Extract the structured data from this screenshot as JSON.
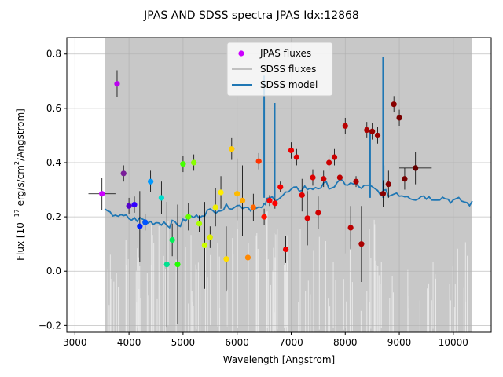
{
  "chart_data": {
    "type": "scatter",
    "title": "JPAS AND SDSS spectra JPAS Idx:12868",
    "xlabel": "Wavelength [Angstrom]",
    "ylabel_prefix": "Flux [10",
    "ylabel_exp": "−17",
    "ylabel_mid": " erg/s/cm",
    "ylabel_sq": "2",
    "ylabel_suffix": "/Angstrom]",
    "xlim": [
      2850,
      10700
    ],
    "ylim": [
      -0.225,
      0.86
    ],
    "xticks": [
      3000,
      4000,
      5000,
      6000,
      7000,
      8000,
      9000,
      10000
    ],
    "yticks": [
      -0.2,
      0.0,
      0.2,
      0.4,
      0.6,
      0.8
    ],
    "grid": true,
    "legend": {
      "placement": "top-center",
      "entries": [
        "JPAS fluxes",
        "SDSS fluxes",
        "SDSS model"
      ]
    },
    "colors": {
      "sdss_fluxes": "#c8c8c8",
      "sdss_model": "#1f77b4",
      "jpas_legend_marker": "#cc00ff"
    },
    "sdss_fluxes_range": [
      3550,
      10350
    ],
    "sdss_model": {
      "name": "SDSS model",
      "x": [
        3550,
        3650,
        3750,
        3850,
        3950,
        4050,
        4150,
        4250,
        4350,
        4450,
        4550,
        4650,
        4750,
        4850,
        4950,
        5050,
        5150,
        5250,
        5350,
        5450,
        5550,
        5650,
        5750,
        5850,
        5950,
        6050,
        6150,
        6250,
        6350,
        6450,
        6500,
        6550,
        6650,
        6750,
        6850,
        6950,
        7050,
        7150,
        7250,
        7350,
        7450,
        7550,
        7650,
        7750,
        7850,
        7950,
        8050,
        8150,
        8250,
        8350,
        8450,
        8550,
        8650,
        8750,
        8850,
        8950,
        9050,
        9150,
        9250,
        9350,
        9450,
        9550,
        9650,
        9750,
        9850,
        9950,
        10050,
        10150,
        10250,
        10350
      ],
      "y": [
        0.22,
        0.21,
        0.21,
        0.2,
        0.2,
        0.19,
        0.19,
        0.19,
        0.18,
        0.18,
        0.18,
        0.18,
        0.17,
        0.18,
        0.17,
        0.19,
        0.2,
        0.2,
        0.21,
        0.22,
        0.22,
        0.23,
        0.23,
        0.24,
        0.24,
        0.24,
        0.24,
        0.23,
        0.24,
        0.23,
        0.24,
        0.26,
        0.27,
        0.27,
        0.28,
        0.29,
        0.3,
        0.3,
        0.31,
        0.3,
        0.31,
        0.31,
        0.32,
        0.31,
        0.32,
        0.33,
        0.32,
        0.32,
        0.31,
        0.31,
        0.31,
        0.3,
        0.29,
        0.29,
        0.28,
        0.29,
        0.28,
        0.28,
        0.27,
        0.27,
        0.28,
        0.27,
        0.27,
        0.27,
        0.27,
        0.26,
        0.26,
        0.26,
        0.25,
        0.25
      ]
    },
    "sdss_model_spikes": [
      {
        "x": 6500,
        "y": 0.72
      },
      {
        "x": 6695,
        "y": 0.62
      },
      {
        "x": 8460,
        "y": 0.52
      },
      {
        "x": 8710,
        "y": 0.39
      },
      {
        "x": 8700,
        "y": 0.79
      }
    ],
    "jpas_fluxes": [
      {
        "x": 3500,
        "y": 0.285,
        "err": 0.06,
        "xerr": 250,
        "color": "#cc00ff"
      },
      {
        "x": 3780,
        "y": 0.69,
        "err": 0.05,
        "xerr": 50,
        "color": "#bb00f0"
      },
      {
        "x": 3900,
        "y": 0.36,
        "err": 0.03,
        "xerr": 50,
        "color": "#7a1d99"
      },
      {
        "x": 4000,
        "y": 0.24,
        "err": 0.03,
        "xerr": 50,
        "color": "#5500cc"
      },
      {
        "x": 4100,
        "y": 0.245,
        "err": 0.03,
        "xerr": 50,
        "color": "#3300ff"
      },
      {
        "x": 4200,
        "y": 0.165,
        "err": 0.13,
        "xerr": 50,
        "color": "#0022ff"
      },
      {
        "x": 4300,
        "y": 0.18,
        "err": 0.03,
        "xerr": 50,
        "color": "#0055ff"
      },
      {
        "x": 4400,
        "y": 0.33,
        "err": 0.04,
        "xerr": 50,
        "color": "#0099ff"
      },
      {
        "x": 4600,
        "y": 0.27,
        "err": 0.06,
        "xerr": 50,
        "color": "#00e0d0"
      },
      {
        "x": 4700,
        "y": 0.025,
        "err": 0.23,
        "xerr": 50,
        "color": "#00e090"
      },
      {
        "x": 4800,
        "y": 0.115,
        "err": 0.06,
        "xerr": 50,
        "color": "#00ee55"
      },
      {
        "x": 4900,
        "y": 0.025,
        "err": 0.22,
        "xerr": 50,
        "color": "#22ff00"
      },
      {
        "x": 5000,
        "y": 0.395,
        "err": 0.03,
        "xerr": 50,
        "color": "#44ff00"
      },
      {
        "x": 5100,
        "y": 0.2,
        "err": 0.05,
        "xerr": 50,
        "color": "#66ff00"
      },
      {
        "x": 5200,
        "y": 0.4,
        "err": 0.03,
        "xerr": 50,
        "color": "#88ff00"
      },
      {
        "x": 5300,
        "y": 0.175,
        "err": 0.03,
        "xerr": 50,
        "color": "#aaff00"
      },
      {
        "x": 5400,
        "y": 0.095,
        "err": 0.16,
        "xerr": 50,
        "color": "#ccff00"
      },
      {
        "x": 5500,
        "y": 0.125,
        "err": 0.04,
        "xerr": 50,
        "color": "#ddee00"
      },
      {
        "x": 5600,
        "y": 0.235,
        "err": 0.07,
        "xerr": 50,
        "color": "#eeee00"
      },
      {
        "x": 5700,
        "y": 0.29,
        "err": 0.06,
        "xerr": 50,
        "color": "#ffee00"
      },
      {
        "x": 5800,
        "y": 0.045,
        "err": 0.12,
        "xerr": 50,
        "color": "#ffdd00"
      },
      {
        "x": 5900,
        "y": 0.45,
        "err": 0.04,
        "xerr": 50,
        "color": "#ffcc00"
      },
      {
        "x": 6000,
        "y": 0.285,
        "err": 0.13,
        "xerr": 50,
        "color": "#ffbb00"
      },
      {
        "x": 6100,
        "y": 0.26,
        "err": 0.13,
        "xerr": 50,
        "color": "#ffaa00"
      },
      {
        "x": 6200,
        "y": 0.05,
        "err": 0.23,
        "xerr": 50,
        "color": "#ff8800"
      },
      {
        "x": 6300,
        "y": 0.235,
        "err": 0.05,
        "xerr": 50,
        "color": "#ff6600"
      },
      {
        "x": 6400,
        "y": 0.405,
        "err": 0.03,
        "xerr": 50,
        "color": "#ff3300"
      },
      {
        "x": 6500,
        "y": 0.2,
        "err": 0.03,
        "xerr": 50,
        "color": "#ff1100"
      },
      {
        "x": 6600,
        "y": 0.26,
        "err": 0.02,
        "xerr": 50,
        "color": "#ff0000"
      },
      {
        "x": 6700,
        "y": 0.25,
        "err": 0.02,
        "xerr": 50,
        "color": "#ff0000"
      },
      {
        "x": 6800,
        "y": 0.31,
        "err": 0.02,
        "xerr": 50,
        "color": "#f50000"
      },
      {
        "x": 6900,
        "y": 0.08,
        "err": 0.05,
        "xerr": 50,
        "color": "#ee0000"
      },
      {
        "x": 7000,
        "y": 0.445,
        "err": 0.03,
        "xerr": 50,
        "color": "#ee0000"
      },
      {
        "x": 7100,
        "y": 0.42,
        "err": 0.03,
        "xerr": 50,
        "color": "#e00000"
      },
      {
        "x": 7200,
        "y": 0.28,
        "err": 0.06,
        "xerr": 50,
        "color": "#dd0000"
      },
      {
        "x": 7300,
        "y": 0.195,
        "err": 0.1,
        "xerr": 50,
        "color": "#dd0000"
      },
      {
        "x": 7400,
        "y": 0.345,
        "err": 0.03,
        "xerr": 50,
        "color": "#dd0000"
      },
      {
        "x": 7500,
        "y": 0.215,
        "err": 0.06,
        "xerr": 50,
        "color": "#d00000"
      },
      {
        "x": 7600,
        "y": 0.34,
        "err": 0.03,
        "xerr": 50,
        "color": "#cc0000"
      },
      {
        "x": 7700,
        "y": 0.4,
        "err": 0.03,
        "xerr": 50,
        "color": "#cc0000"
      },
      {
        "x": 7800,
        "y": 0.42,
        "err": 0.03,
        "xerr": 50,
        "color": "#cc0000"
      },
      {
        "x": 7900,
        "y": 0.345,
        "err": 0.03,
        "xerr": 50,
        "color": "#bb0000"
      },
      {
        "x": 8000,
        "y": 0.535,
        "err": 0.03,
        "xerr": 50,
        "color": "#bb0000"
      },
      {
        "x": 8100,
        "y": 0.16,
        "err": 0.08,
        "xerr": 50,
        "color": "#bb0000"
      },
      {
        "x": 8200,
        "y": 0.33,
        "err": 0.02,
        "xerr": 50,
        "color": "#aa0000"
      },
      {
        "x": 8300,
        "y": 0.1,
        "err": 0.14,
        "xerr": 50,
        "color": "#aa0000"
      },
      {
        "x": 8400,
        "y": 0.52,
        "err": 0.03,
        "xerr": 50,
        "color": "#aa0000"
      },
      {
        "x": 8500,
        "y": 0.515,
        "err": 0.03,
        "xerr": 50,
        "color": "#990000"
      },
      {
        "x": 8600,
        "y": 0.5,
        "err": 0.03,
        "xerr": 50,
        "color": "#990000"
      },
      {
        "x": 8700,
        "y": 0.285,
        "err": 0.05,
        "xerr": 50,
        "color": "#880000"
      },
      {
        "x": 8800,
        "y": 0.32,
        "err": 0.05,
        "xerr": 50,
        "color": "#880000"
      },
      {
        "x": 8900,
        "y": 0.615,
        "err": 0.03,
        "xerr": 50,
        "color": "#880000"
      },
      {
        "x": 9000,
        "y": 0.565,
        "err": 0.03,
        "xerr": 50,
        "color": "#770000"
      },
      {
        "x": 9100,
        "y": 0.34,
        "err": 0.04,
        "xerr": 50,
        "color": "#770000"
      },
      {
        "x": 9300,
        "y": 0.38,
        "err": 0.06,
        "xerr": 300,
        "color": "#660000"
      }
    ]
  }
}
